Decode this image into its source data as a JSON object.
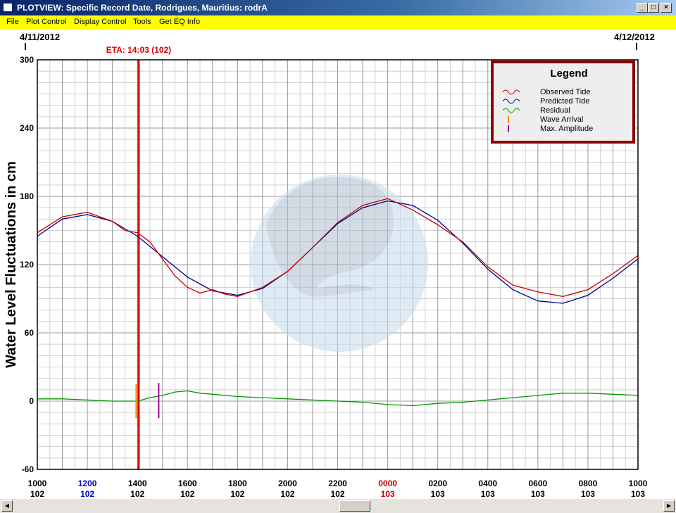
{
  "window": {
    "title": "PLOTVIEW: Specific Record Date, Rodrigues, Mauritius: rodrA",
    "minimize_label": "_",
    "maximize_label": "□",
    "close_label": "×"
  },
  "menu": {
    "items": [
      "File",
      "Plot Control",
      "Display Control",
      "Tools",
      "Get EQ Info"
    ]
  },
  "colors": {
    "observed": "#cc0000",
    "predicted": "#00008b",
    "residual": "#009900",
    "wave_arrival": "#ff8c00",
    "max_amplitude": "#a000a0",
    "eta_line": "#dd0000",
    "legend_border": "#8b0000",
    "menu_bg": "#ffff00",
    "tick_highlight_blue": "#0000cc",
    "tick_highlight_red": "#cc0000"
  },
  "chart_data": {
    "type": "line",
    "ylabel": "Water Level Fluctuations in cm",
    "ylim": [
      -60,
      300
    ],
    "xlim_hours": [
      0,
      24
    ],
    "y_ticks": [
      300,
      240,
      180,
      120,
      60,
      0,
      -60
    ],
    "grid": true,
    "legend_position": "top-right",
    "date_start": "4/11/2012",
    "date_end": "4/12/2012",
    "eta_label": "ETA: 14:03 (102)",
    "eta_hour": 4.05,
    "x_ticks": [
      {
        "time": "1000",
        "day": "102",
        "hour": 0,
        "color": "black"
      },
      {
        "time": "1200",
        "day": "102",
        "hour": 2,
        "color": "blue"
      },
      {
        "time": "1400",
        "day": "102",
        "hour": 4,
        "color": "black"
      },
      {
        "time": "1600",
        "day": "102",
        "hour": 6,
        "color": "black"
      },
      {
        "time": "1800",
        "day": "102",
        "hour": 8,
        "color": "black"
      },
      {
        "time": "2000",
        "day": "102",
        "hour": 10,
        "color": "black"
      },
      {
        "time": "2200",
        "day": "102",
        "hour": 12,
        "color": "black"
      },
      {
        "time": "0000",
        "day": "103",
        "hour": 14,
        "color": "red"
      },
      {
        "time": "0200",
        "day": "103",
        "hour": 16,
        "color": "black"
      },
      {
        "time": "0400",
        "day": "103",
        "hour": 18,
        "color": "black"
      },
      {
        "time": "0600",
        "day": "103",
        "hour": 20,
        "color": "black"
      },
      {
        "time": "0800",
        "day": "103",
        "hour": 22,
        "color": "black"
      },
      {
        "time": "1000",
        "day": "103",
        "hour": 24,
        "color": "black"
      }
    ],
    "legend": {
      "title": "Legend",
      "entries": [
        "Observed Tide",
        "Predicted Tide",
        "Residual",
        "Wave Arrival",
        "Max. Amplitude"
      ]
    },
    "series": [
      {
        "name": "Predicted Tide",
        "hours": [
          0,
          1,
          2,
          3,
          4,
          5,
          6,
          7,
          8,
          9,
          10,
          11,
          12,
          13,
          14,
          15,
          16,
          17,
          18,
          19,
          20,
          21,
          22,
          23,
          24
        ],
        "values": [
          145,
          160,
          164,
          158,
          145,
          127,
          109,
          97,
          93,
          99,
          114,
          135,
          156,
          170,
          176,
          172,
          159,
          139,
          116,
          98,
          88,
          86,
          93,
          108,
          125
        ]
      },
      {
        "name": "Observed Tide",
        "hours": [
          0,
          1,
          2,
          3,
          3.5,
          4,
          4.5,
          5,
          5.5,
          6,
          6.5,
          7,
          7.5,
          8,
          9,
          10,
          11,
          12,
          13,
          14,
          15,
          16,
          17,
          18,
          19,
          20,
          21,
          22,
          23,
          24
        ],
        "values": [
          148,
          162,
          166,
          158,
          150,
          148,
          140,
          125,
          110,
          100,
          95,
          98,
          94,
          92,
          100,
          114,
          135,
          157,
          172,
          178,
          168,
          155,
          140,
          118,
          102,
          96,
          92,
          98,
          112,
          128
        ]
      },
      {
        "name": "Residual",
        "hours": [
          0,
          1,
          2,
          3,
          3.5,
          4,
          4.5,
          5,
          5.5,
          6,
          6.5,
          7,
          8,
          9,
          10,
          11,
          12,
          13,
          14,
          15,
          16,
          17,
          18,
          19,
          20,
          21,
          22,
          23,
          24
        ],
        "values": [
          2,
          2,
          1,
          0,
          0,
          0,
          3,
          5,
          8,
          9,
          7,
          6,
          4,
          3,
          2,
          1,
          0,
          -1,
          -3,
          -4,
          -2,
          -1,
          1,
          3,
          5,
          7,
          7,
          6,
          5
        ]
      }
    ],
    "wave_arrival_hour": 3.95,
    "max_amplitude_hour": 4.85
  }
}
